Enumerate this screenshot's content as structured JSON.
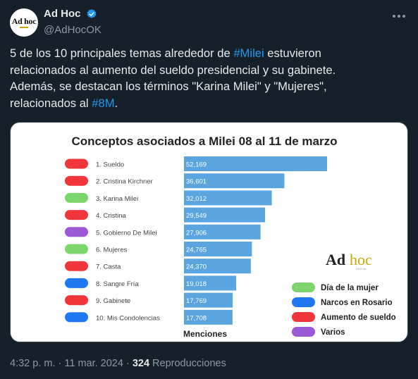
{
  "header": {
    "avatar_text": "Ad hoc",
    "display_name": "Ad Hoc",
    "handle": "@AdHocOK"
  },
  "tweet": {
    "line1_pre": "5 de los 10 principales temas alrededor de ",
    "line1_tag": "#Milei",
    "line1_post": "  estuvieron",
    "line2": "relacionados al aumento del sueldo presidencial y su gabinete.",
    "line3": "Además, se destacan los términos \"Karina Milei\" y \"Mujeres\",",
    "line4_pre": "relacionados al ",
    "line4_tag": "#8M",
    "line4_post": "."
  },
  "footer": {
    "time": "4:32 p. m. · 11 mar. 2024 · ",
    "views": "324",
    "views_label": " Reproducciones"
  },
  "colors": {
    "background": "#15202b",
    "hashtag": "#1d9bf0",
    "bar": "#5aa5e0",
    "green": "#7dd66b",
    "blue": "#1f78f0",
    "red": "#f0353b",
    "purple": "#9b59d6"
  },
  "chart_data": {
    "type": "bar",
    "title": "Conceptos asociados a Milei 08 al 11 de marzo",
    "xlabel": "Menciones",
    "categories": [
      "1. Sueldo",
      "2. Cristina Kirchner",
      "3. Karina Milei",
      "4. Cristina",
      "5. Gobierno De Milei",
      "6. Mujeres",
      "7. Casta",
      "8. Sangre Fría",
      "9. Gabinete",
      "10. Mis Condolencias"
    ],
    "values": [
      52169,
      36601,
      32012,
      29549,
      27906,
      24765,
      24370,
      19018,
      17769,
      17708
    ],
    "value_labels": [
      "52,169",
      "36,601",
      "32,012",
      "29,549",
      "27,906",
      "24,765",
      "24,370",
      "19,018",
      "17,769",
      "17,708"
    ],
    "categories_group": [
      "red",
      "red",
      "green",
      "red",
      "purple",
      "green",
      "red",
      "blue",
      "red",
      "blue"
    ],
    "legend": [
      {
        "label": "Día de la mujer",
        "color": "green"
      },
      {
        "label": "Narcos en Rosario",
        "color": "blue"
      },
      {
        "label": "Aumento de sueldo",
        "color": "red"
      },
      {
        "label": "Varios",
        "color": "purple"
      }
    ],
    "legend_position": "bottom-right",
    "logo_text": "Ad hoc",
    "logo_sub": "DIGITAL"
  }
}
